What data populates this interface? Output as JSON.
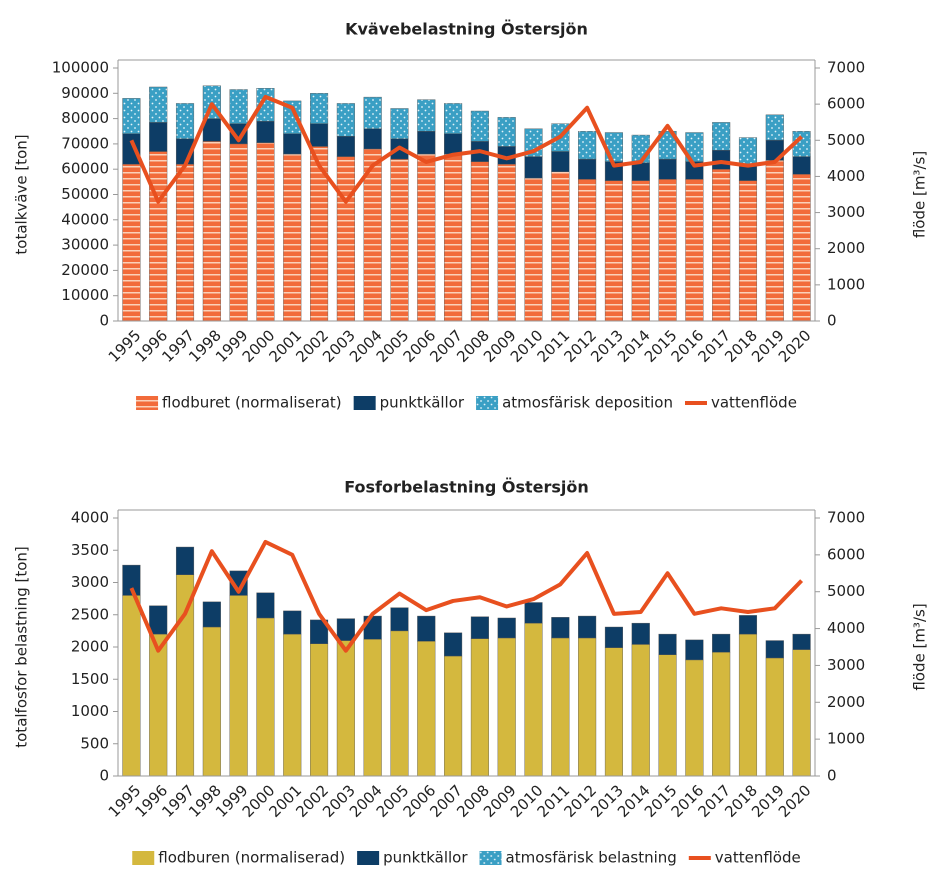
{
  "chart_data": [
    {
      "type": "bar",
      "stacked": true,
      "title": "Kvävebelastning Östersjön",
      "ylabel": "totalkväve [ton]",
      "y2label": "flöde [m³/s]",
      "categories": [
        "1995",
        "1996",
        "1997",
        "1998",
        "1999",
        "2000",
        "2001",
        "2002",
        "2003",
        "2004",
        "2005",
        "2006",
        "2007",
        "2008",
        "2009",
        "2010",
        "2011",
        "2012",
        "2013",
        "2014",
        "2015",
        "2016",
        "2017",
        "2018",
        "2019",
        "2020"
      ],
      "series": [
        {
          "name": "flodburet (normaliserat)",
          "color": "#f26b3a",
          "pattern": "stripes",
          "values": [
            62000,
            67000,
            62000,
            71000,
            70000,
            70500,
            66000,
            69000,
            65000,
            68000,
            64000,
            66000,
            66000,
            63000,
            62000,
            56500,
            59000,
            56000,
            55500,
            55500,
            56000,
            56000,
            60000,
            55500,
            63500,
            58000
          ]
        },
        {
          "name": "punktkällor",
          "color": "#0d3d66",
          "values": [
            12000,
            11500,
            10000,
            9000,
            8000,
            8500,
            8000,
            9000,
            8000,
            8000,
            8000,
            9000,
            8000,
            8000,
            7000,
            8500,
            8000,
            8000,
            7500,
            7000,
            8000,
            7000,
            7500,
            6500,
            8000,
            7000
          ]
        },
        {
          "name": "atmosfärisk deposition",
          "color": "#3a9fc4",
          "pattern": "dots",
          "values": [
            14000,
            14000,
            14000,
            13000,
            13500,
            13000,
            13000,
            12000,
            13000,
            12500,
            12000,
            12500,
            12000,
            12000,
            11500,
            11000,
            11000,
            11000,
            11500,
            11000,
            11000,
            11500,
            11000,
            10500,
            10000,
            10000
          ]
        },
        {
          "name": "vattenflöde",
          "color": "#e8501f",
          "axis": "y2",
          "values": [
            5000,
            3300,
            4300,
            6000,
            5000,
            6200,
            5900,
            4300,
            3300,
            4300,
            4800,
            4400,
            4600,
            4700,
            4500,
            4700,
            5100,
            5900,
            4300,
            4400,
            5400,
            4300,
            4400,
            4300,
            4400,
            5100
          ]
        }
      ],
      "ylim": [
        0,
        100000
      ],
      "yticks": [
        0,
        10000,
        20000,
        30000,
        40000,
        50000,
        60000,
        70000,
        80000,
        90000,
        100000
      ],
      "y2lim": [
        0,
        7000
      ],
      "y2ticks": [
        0,
        1000,
        2000,
        3000,
        4000,
        5000,
        6000,
        7000
      ],
      "legend": "bottom"
    },
    {
      "type": "bar",
      "stacked": true,
      "title": "Fosforbelastning Östersjön",
      "ylabel": "totalfosfor belastning [ton]",
      "y2label": "flöde [m³/s]",
      "categories": [
        "1995",
        "1996",
        "1997",
        "1998",
        "1999",
        "2000",
        "2001",
        "2002",
        "2003",
        "2004",
        "2005",
        "2006",
        "2007",
        "2008",
        "2009",
        "2010",
        "2011",
        "2012",
        "2013",
        "2014",
        "2015",
        "2016",
        "2017",
        "2018",
        "2019",
        "2020"
      ],
      "series": [
        {
          "name": "flodburen (normaliserad)",
          "color": "#d4b83e",
          "values": [
            2800,
            2200,
            3120,
            2310,
            2800,
            2450,
            2200,
            2050,
            2100,
            2120,
            2250,
            2090,
            1860,
            2130,
            2140,
            2370,
            2140,
            2140,
            1990,
            2040,
            1880,
            1800,
            1920,
            2200,
            1830,
            1960
          ]
        },
        {
          "name": "punktkällor",
          "color": "#0d3d66",
          "values": [
            470,
            440,
            430,
            390,
            380,
            390,
            360,
            370,
            340,
            360,
            360,
            390,
            360,
            340,
            310,
            320,
            320,
            340,
            320,
            330,
            320,
            310,
            280,
            290,
            270,
            240
          ]
        },
        {
          "name": "atmosfärisk belastning",
          "color": "#3a9fc4",
          "pattern": "dots",
          "values": [
            0,
            0,
            0,
            0,
            0,
            0,
            0,
            0,
            0,
            0,
            0,
            0,
            0,
            0,
            0,
            0,
            0,
            0,
            0,
            0,
            0,
            0,
            0,
            0,
            0,
            0
          ]
        },
        {
          "name": "vattenflöde",
          "color": "#e8501f",
          "axis": "y2",
          "values": [
            5100,
            3400,
            4400,
            6100,
            5000,
            6350,
            6000,
            4400,
            3400,
            4400,
            4950,
            4500,
            4750,
            4850,
            4600,
            4800,
            5200,
            6050,
            4400,
            4450,
            5500,
            4400,
            4550,
            4450,
            4550,
            5300
          ]
        }
      ],
      "ylim": [
        0,
        4000
      ],
      "yticks": [
        0,
        500,
        1000,
        1500,
        2000,
        2500,
        3000,
        3500,
        4000
      ],
      "y2lim": [
        0,
        7000
      ],
      "y2ticks": [
        0,
        1000,
        2000,
        3000,
        4000,
        5000,
        6000,
        7000
      ],
      "legend": "bottom"
    }
  ]
}
